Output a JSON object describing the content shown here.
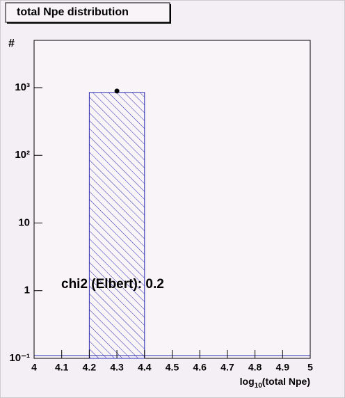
{
  "chart_data": {
    "type": "histogram",
    "title": "total Npe distribution",
    "ylabel": "#",
    "xlabel": {
      "base": "log",
      "sub": "10",
      "rest": "(total Npe)"
    },
    "annotation": "chi2 (Elbert): 0.2",
    "bins": [
      4.0,
      4.2,
      4.4,
      4.6,
      4.8,
      5.0
    ],
    "values": [
      0,
      850,
      0,
      0,
      0
    ],
    "color": "#2b2bb0",
    "points": {
      "x": [
        4.3
      ],
      "values": [
        890
      ],
      "errors": [
        30
      ],
      "color": "#000000"
    },
    "xlim": [
      4,
      5
    ],
    "xticks": [
      4,
      4.1,
      4.2,
      4.3,
      4.4,
      4.5,
      4.6,
      4.7,
      4.8,
      4.9,
      5
    ],
    "ylim": [
      0.1,
      5000
    ],
    "ylog": true,
    "yticks": [
      {
        "value": 0.1,
        "label": "10⁻¹"
      },
      1,
      10,
      {
        "value": 100,
        "label": "10²"
      },
      {
        "value": 1000,
        "label": "10³"
      }
    ]
  }
}
